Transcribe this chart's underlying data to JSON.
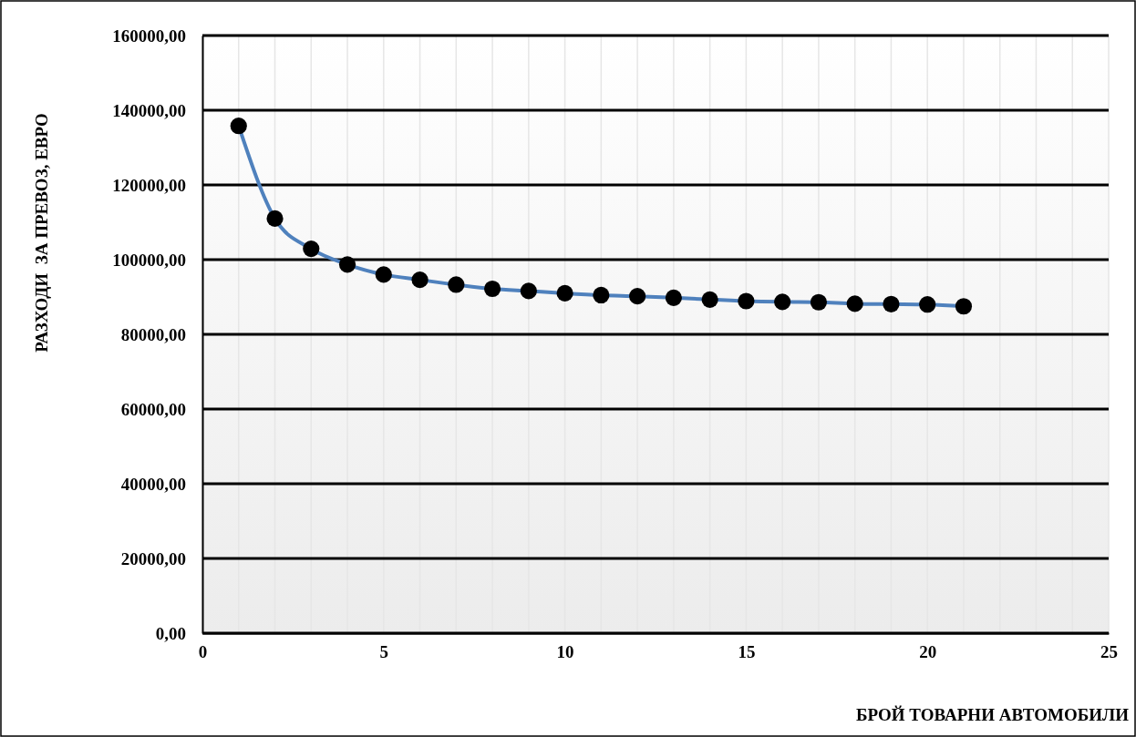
{
  "chart_data": {
    "type": "line",
    "xlabel": "БРОЙ ТОВАРНИ АВТОМОБИЛИ",
    "ylabel": "РАЗХОДИ  ЗА ПРЕВОЗ, ЕВРО",
    "x": [
      1,
      2,
      3,
      4,
      5,
      6,
      7,
      8,
      9,
      10,
      11,
      12,
      13,
      14,
      15,
      16,
      17,
      18,
      19,
      20,
      21
    ],
    "series": [
      {
        "color": "#4f81bd",
        "values": [
          135800,
          111000,
          102900,
          98700,
          96000,
          94600,
          93300,
          92200,
          91600,
          91000,
          90500,
          90200,
          89800,
          89300,
          88900,
          88700,
          88600,
          88200,
          88100,
          88000,
          87500
        ]
      }
    ],
    "marker": "circle",
    "line_style": "solid",
    "xlim": [
      0,
      25
    ],
    "xticks": [
      0,
      {
        "value": 1,
        "label": null
      },
      {
        "value": 2,
        "label": null
      },
      {
        "value": 3,
        "label": null
      },
      {
        "value": 4,
        "label": null
      },
      5,
      {
        "value": 6,
        "label": null
      },
      {
        "value": 7,
        "label": null
      },
      {
        "value": 8,
        "label": null
      },
      {
        "value": 9,
        "label": null
      },
      10,
      {
        "value": 11,
        "label": null
      },
      {
        "value": 12,
        "label": null
      },
      {
        "value": 13,
        "label": null
      },
      {
        "value": 14,
        "label": null
      },
      15,
      {
        "value": 16,
        "label": null
      },
      {
        "value": 17,
        "label": null
      },
      {
        "value": 18,
        "label": null
      },
      {
        "value": 19,
        "label": null
      },
      20,
      {
        "value": 21,
        "label": null
      },
      {
        "value": 22,
        "label": null
      },
      {
        "value": 23,
        "label": null
      },
      {
        "value": 24,
        "label": null
      },
      25
    ],
    "ylim": [
      0,
      160000
    ],
    "yticks": [
      {
        "value": 0,
        "label": "0,00"
      },
      {
        "value": 20000,
        "label": "20000,00"
      },
      {
        "value": 40000,
        "label": "40000,00"
      },
      {
        "value": 60000,
        "label": "60000,00"
      },
      {
        "value": 80000,
        "label": "80000,00"
      },
      {
        "value": 100000,
        "label": "100000,00"
      },
      {
        "value": 120000,
        "label": "120000,00"
      },
      {
        "value": 140000,
        "label": "140000,00"
      },
      {
        "value": 160000,
        "label": "160000,00"
      }
    ],
    "grid": true
  }
}
